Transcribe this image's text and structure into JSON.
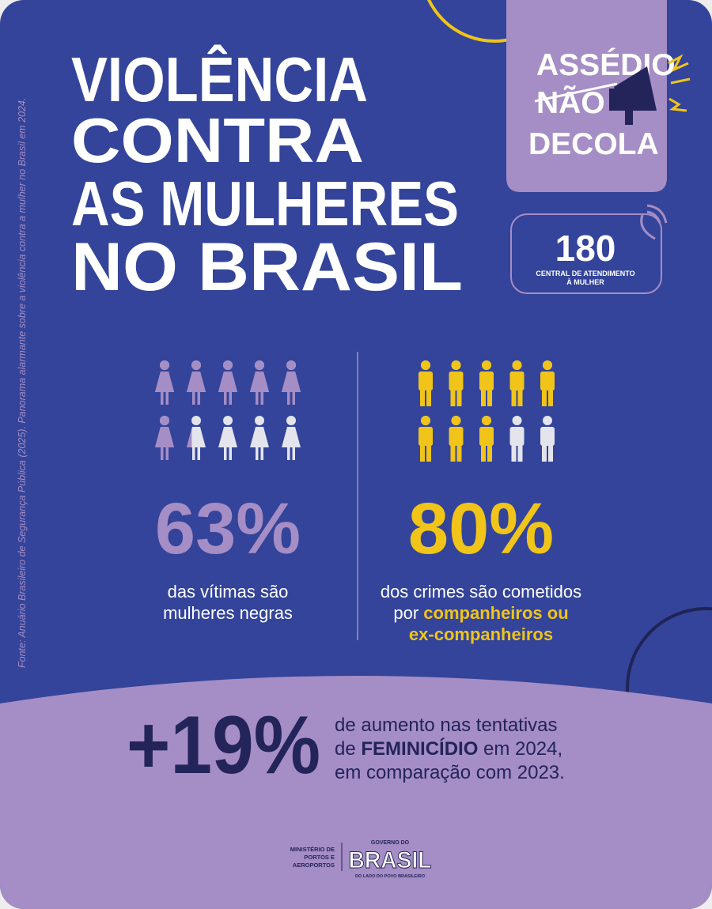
{
  "source": "Fonte: Anuário Brasileiro de Segurança Pública (2025). Panorama alarmante sobre a violência contra a mulher no Brasil em 2024.",
  "title": [
    "VIOLÊNCIA",
    "CONTRA",
    "AS MULHERES",
    "NO BRASIL"
  ],
  "badge": [
    "ASSÉDIO",
    "NÃO",
    "DECOLA"
  ],
  "hotline": {
    "number": "180",
    "lines": [
      "CENTRAL DE ATENDIMENTO",
      "À MULHER"
    ]
  },
  "stats": [
    {
      "value": 63,
      "label": "63%",
      "caption": [
        "das vítimas são",
        "mulheres negras"
      ]
    },
    {
      "value": 80,
      "label": "80%",
      "caption": [
        "dos crimes são cometidos",
        "por ",
        "companheiros ou",
        "ex-companheiros"
      ]
    }
  ],
  "highlight": {
    "label": "+19%",
    "text": [
      "de aumento nas tentativas",
      "de ",
      "FEMINICÍDIO",
      " em 2024,",
      "em comparação com 2023."
    ]
  },
  "footer": {
    "ministry": [
      "MINISTÉRIO DE",
      "PORTOS E",
      "AEROPORTOS"
    ],
    "government": [
      "GOVERNO DO",
      "BRASIL",
      "DO LADO DO POVO BRASILEIRO"
    ]
  }
}
